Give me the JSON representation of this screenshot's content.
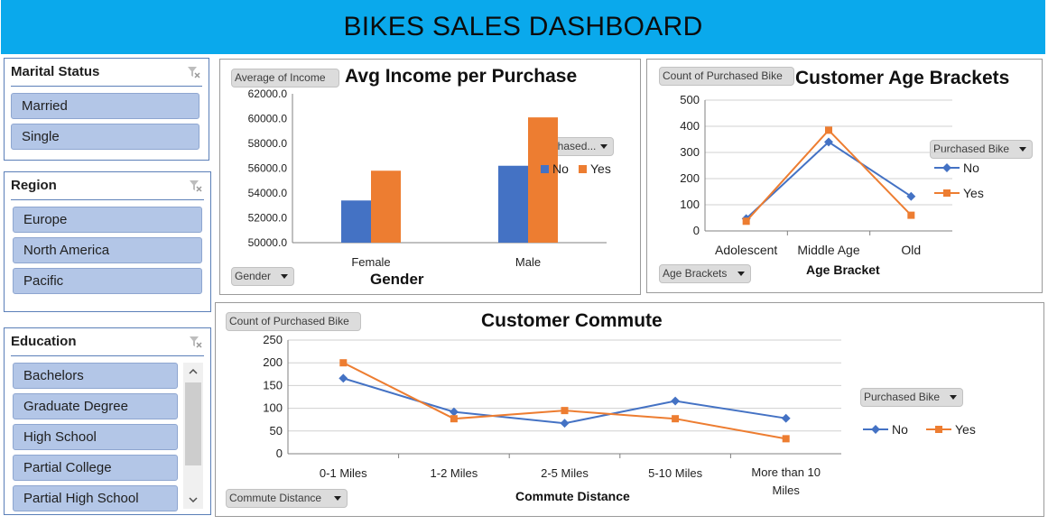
{
  "dashboard": {
    "title": "BIKES SALES DASHBOARD"
  },
  "slicers": {
    "marital_status": {
      "title": "Marital Status",
      "items": [
        "Married",
        "Single"
      ]
    },
    "region": {
      "title": "Region",
      "items": [
        "Europe",
        "North America",
        "Pacific"
      ]
    },
    "education": {
      "title": "Education",
      "items": [
        "Bachelors",
        "Graduate Degree",
        "High School",
        "Partial College",
        "Partial High School"
      ]
    }
  },
  "income_chart": {
    "value_field_button": "Average of Income",
    "title": "Avg Income per Purchase",
    "legend_field_button": "Purchased...",
    "axis_field_button": "Gender",
    "xlabel": "Gender"
  },
  "age_chart": {
    "value_field_button": "Count of Purchased Bike",
    "title": "Customer Age Brackets",
    "legend_field_button": "Purchased Bike",
    "axis_field_button": "Age Brackets",
    "xlabel": "Age Bracket"
  },
  "commute_chart": {
    "value_field_button": "Count of Purchased Bike",
    "title": "Customer Commute",
    "legend_field_button": "Purchased Bike",
    "axis_field_button": "Commute Distance",
    "xlabel": "Commute Distance"
  },
  "colors": {
    "no": "#4472c4",
    "yes": "#ed7d31",
    "header": "#0aa9ec",
    "slicer_item": "#b3c6e7"
  },
  "chart_data": [
    {
      "type": "bar",
      "title": "Avg Income per Purchase",
      "xlabel": "Gender",
      "ylabel": "",
      "categories": [
        "Female",
        "Male"
      ],
      "series": [
        {
          "name": "No",
          "values": [
            53400,
            56200
          ]
        },
        {
          "name": "Yes",
          "values": [
            55800,
            60100
          ]
        }
      ],
      "ylim": [
        50000,
        62000
      ],
      "yticks": [
        "50000.0",
        "52000.0",
        "54000.0",
        "56000.0",
        "58000.0",
        "60000.0",
        "62000.0"
      ],
      "legend": "right",
      "grid": false
    },
    {
      "type": "line",
      "title": "Customer Age Brackets",
      "xlabel": "Age Bracket",
      "ylabel": "",
      "categories": [
        "Adolescent",
        "Middle Age",
        "Old"
      ],
      "series": [
        {
          "name": "No",
          "values": [
            47,
            340,
            132
          ]
        },
        {
          "name": "Yes",
          "values": [
            37,
            385,
            60
          ]
        }
      ],
      "ylim": [
        0,
        500
      ],
      "yticks": [
        "0",
        "100",
        "200",
        "300",
        "400",
        "500"
      ],
      "legend": "right",
      "grid": true
    },
    {
      "type": "line",
      "title": "Customer Commute",
      "xlabel": "Commute Distance",
      "ylabel": "",
      "categories": [
        "0-1 Miles",
        "1-2 Miles",
        "2-5 Miles",
        "5-10 Miles",
        "More than 10 Miles"
      ],
      "series": [
        {
          "name": "No",
          "values": [
            166,
            92,
            67,
            116,
            78
          ]
        },
        {
          "name": "Yes",
          "values": [
            200,
            77,
            95,
            77,
            33
          ]
        }
      ],
      "ylim": [
        0,
        250
      ],
      "yticks": [
        "0",
        "50",
        "100",
        "150",
        "200",
        "250"
      ],
      "legend": "right",
      "grid": true
    }
  ]
}
